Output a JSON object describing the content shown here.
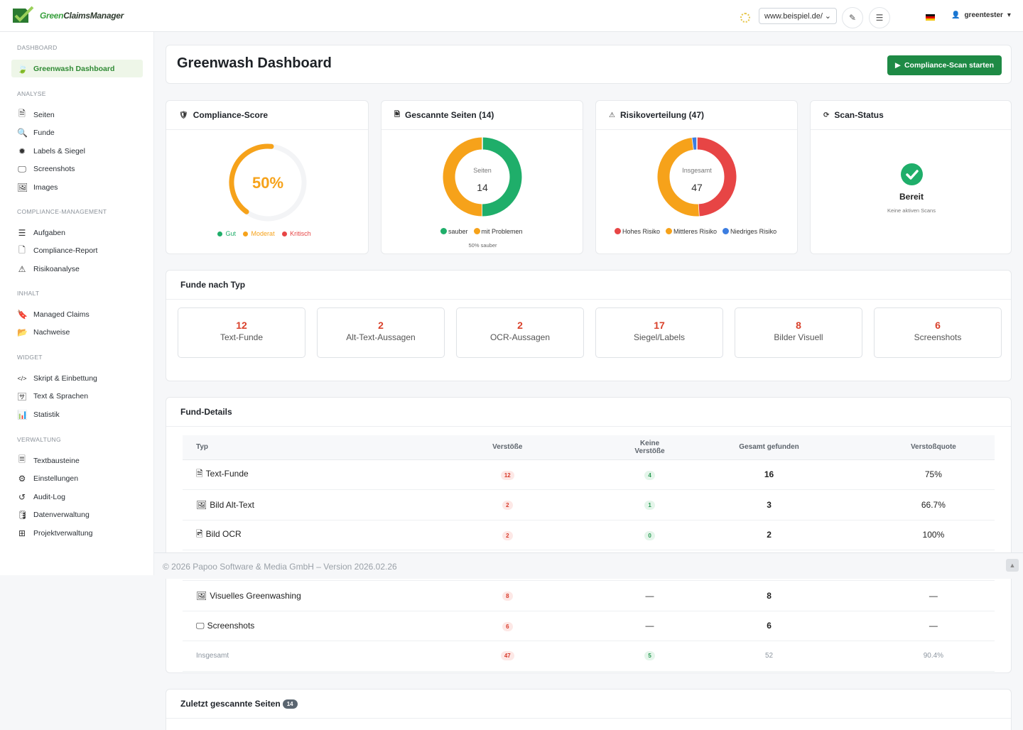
{
  "topbar": {
    "logo_text_green": "Green",
    "logo_text_rest": "ClaimsManager",
    "site_select_value": "www.beispiel.de/",
    "username": "greentester"
  },
  "sidebar": {
    "sections": [
      {
        "label": "DASHBOARD",
        "items": [
          {
            "label": "Greenwash Dashboard",
            "icon": "leaf-icon",
            "active": true
          }
        ]
      },
      {
        "label": "ANALYSE",
        "items": [
          {
            "label": "Seiten",
            "icon": "file-icon"
          },
          {
            "label": "Funde",
            "icon": "search-icon"
          },
          {
            "label": "Labels & Siegel",
            "icon": "badge-icon"
          },
          {
            "label": "Screenshots",
            "icon": "monitor-icon"
          },
          {
            "label": "Images",
            "icon": "image-icon"
          }
        ]
      },
      {
        "label": "COMPLIANCE-MANAGEMENT",
        "items": [
          {
            "label": "Aufgaben",
            "icon": "tasks-icon"
          },
          {
            "label": "Compliance-Report",
            "icon": "pdf-icon"
          },
          {
            "label": "Risikoanalyse",
            "icon": "warning-icon"
          }
        ]
      },
      {
        "label": "INHALT",
        "items": [
          {
            "label": "Managed Claims",
            "icon": "bookmark-icon"
          },
          {
            "label": "Nachweise",
            "icon": "folder-icon"
          }
        ]
      },
      {
        "label": "WIDGET",
        "items": [
          {
            "label": "Skript & Einbettung",
            "icon": "code-icon"
          },
          {
            "label": "Text & Sprachen",
            "icon": "language-icon"
          },
          {
            "label": "Statistik",
            "icon": "bar-chart-icon"
          }
        ]
      },
      {
        "label": "VERWALTUNG",
        "items": [
          {
            "label": "Textbausteine",
            "icon": "file-text-icon"
          },
          {
            "label": "Einstellungen",
            "icon": "gear-icon"
          },
          {
            "label": "Audit-Log",
            "icon": "history-icon"
          },
          {
            "label": "Datenverwaltung",
            "icon": "database-icon"
          },
          {
            "label": "Projektverwaltung",
            "icon": "sitemap-icon"
          }
        ]
      }
    ]
  },
  "header": {
    "title": "Greenwash Dashboard",
    "scan_button": "Compliance-Scan starten"
  },
  "widgets": {
    "score": {
      "title": "Compliance-Score",
      "value_label": "50%",
      "fraction": 0.5,
      "legend": [
        "Gut",
        "Moderat",
        "Kritisch"
      ]
    },
    "pages": {
      "title": "Gescannte Seiten (14)",
      "center_label": "Seiten",
      "center_value": "14",
      "legend": [
        "sauber",
        "mit Problemen"
      ],
      "sub": "50% sauber"
    },
    "risk": {
      "title": "Risikoverteilung (47)",
      "center_label": "Insgesamt",
      "center_value": "47",
      "legend": [
        "Hohes Risiko",
        "Mittleres Risiko",
        "Niedriges Risiko"
      ]
    },
    "scan": {
      "title": "Scan-Status",
      "status": "Bereit",
      "sub": "Keine aktiven Scans"
    }
  },
  "chart_data": [
    {
      "type": "pie",
      "title": "Compliance-Score",
      "categories": [
        "Score"
      ],
      "values": [
        50
      ]
    },
    {
      "type": "pie",
      "title": "Gescannte Seiten (14)",
      "categories": [
        "sauber",
        "mit Problemen"
      ],
      "values": [
        7,
        7
      ]
    },
    {
      "type": "pie",
      "title": "Risikoverteilung (47)",
      "categories": [
        "Hohes Risiko",
        "Mittleres Risiko",
        "Niedriges Risiko"
      ],
      "values": [
        23,
        23,
        1
      ]
    }
  ],
  "findings_by_type": {
    "title": "Funde nach Typ",
    "items": [
      {
        "count": "12",
        "label": "Text-Funde"
      },
      {
        "count": "2",
        "label": "Alt-Text-Aussagen"
      },
      {
        "count": "2",
        "label": "OCR-Aussagen"
      },
      {
        "count": "17",
        "label": "Siegel/Labels"
      },
      {
        "count": "8",
        "label": "Bilder Visuell"
      },
      {
        "count": "6",
        "label": "Screenshots"
      }
    ]
  },
  "find_details": {
    "title": "Fund-Details",
    "columns": [
      "Typ",
      "Verstöße",
      "Keine Verstöße",
      "Gesamt gefunden",
      "Verstoßquote"
    ],
    "rows": [
      {
        "icon": "file-icon",
        "type": "Text-Funde",
        "violations": "12",
        "no_violations": "4",
        "total": "16",
        "rate": "75%"
      },
      {
        "icon": "image-icon",
        "type": "Bild Alt-Text",
        "violations": "2",
        "no_violations": "1",
        "total": "3",
        "rate": "66.7%"
      },
      {
        "icon": "image-file-icon",
        "type": "Bild OCR",
        "violations": "2",
        "no_violations": "0",
        "total": "2",
        "rate": "100%"
      }
    ],
    "rows_after_footer": [
      {
        "icon": "image-icon",
        "type": "Visuelles Greenwashing",
        "violations": "8",
        "no_violations": "—",
        "total": "8",
        "rate": "—"
      },
      {
        "icon": "monitor-icon",
        "type": "Screenshots",
        "violations": "6",
        "no_violations": "—",
        "total": "6",
        "rate": "—"
      }
    ],
    "total_row": {
      "type": "Insgesamt",
      "violations": "47",
      "no_violations": "5",
      "total": "52",
      "rate": "90.4%"
    }
  },
  "footer": {
    "text": "© 2026 Papoo Software & Media GmbH – Version 2026.02.26"
  },
  "recent": {
    "title": "Zuletzt gescannte Seiten",
    "count": "14"
  },
  "colors": {
    "green": "#1fae6a",
    "orange": "#f6a21a",
    "red": "#e74545",
    "blue": "#3c7de0",
    "brand": "#1e8a45"
  }
}
